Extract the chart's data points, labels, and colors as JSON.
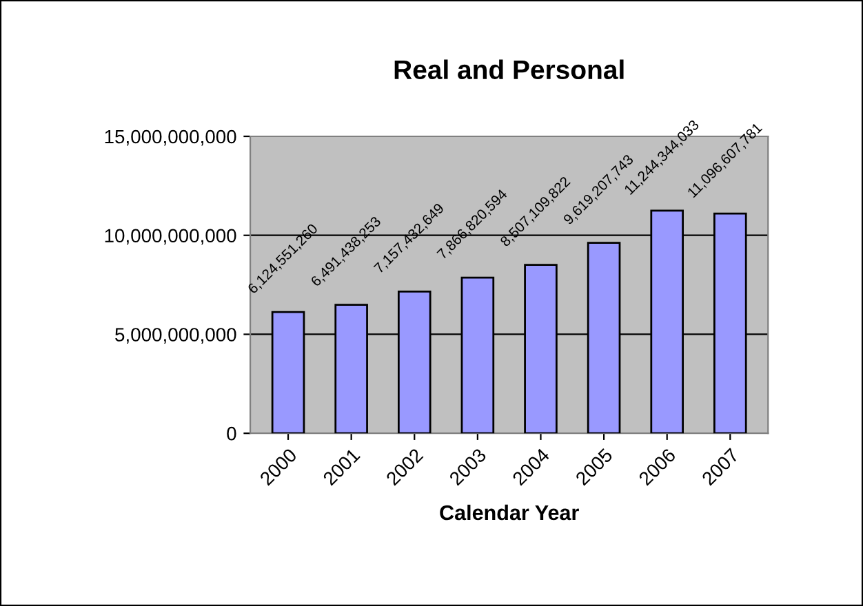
{
  "chart_data": {
    "type": "bar",
    "title": "Real and Personal",
    "xlabel": "Calendar Year",
    "categories": [
      "2000",
      "2001",
      "2002",
      "2003",
      "2004",
      "2005",
      "2006",
      "2007"
    ],
    "values": [
      6124551260,
      6491438253,
      7157432649,
      7866820594,
      8507109822,
      9619207743,
      11244344033,
      11096607781
    ],
    "value_labels": [
      "6,124,551,260",
      "6,491,438,253",
      "7,157,432,649",
      "7,866,820,594",
      "8,507,109,822",
      "9,619,207,743",
      "11,244,344,033",
      "11,096,607,781"
    ],
    "color": "#9999ff",
    "ylim": [
      0,
      15000000000
    ],
    "yticks": [
      0,
      {
        "value": 5000000000,
        "label": "5,000,000,000"
      },
      {
        "value": 10000000000,
        "label": "10,000,000,000"
      },
      {
        "value": 15000000000,
        "label": "15,000,000,000"
      }
    ],
    "grid": "y",
    "legend": false
  }
}
